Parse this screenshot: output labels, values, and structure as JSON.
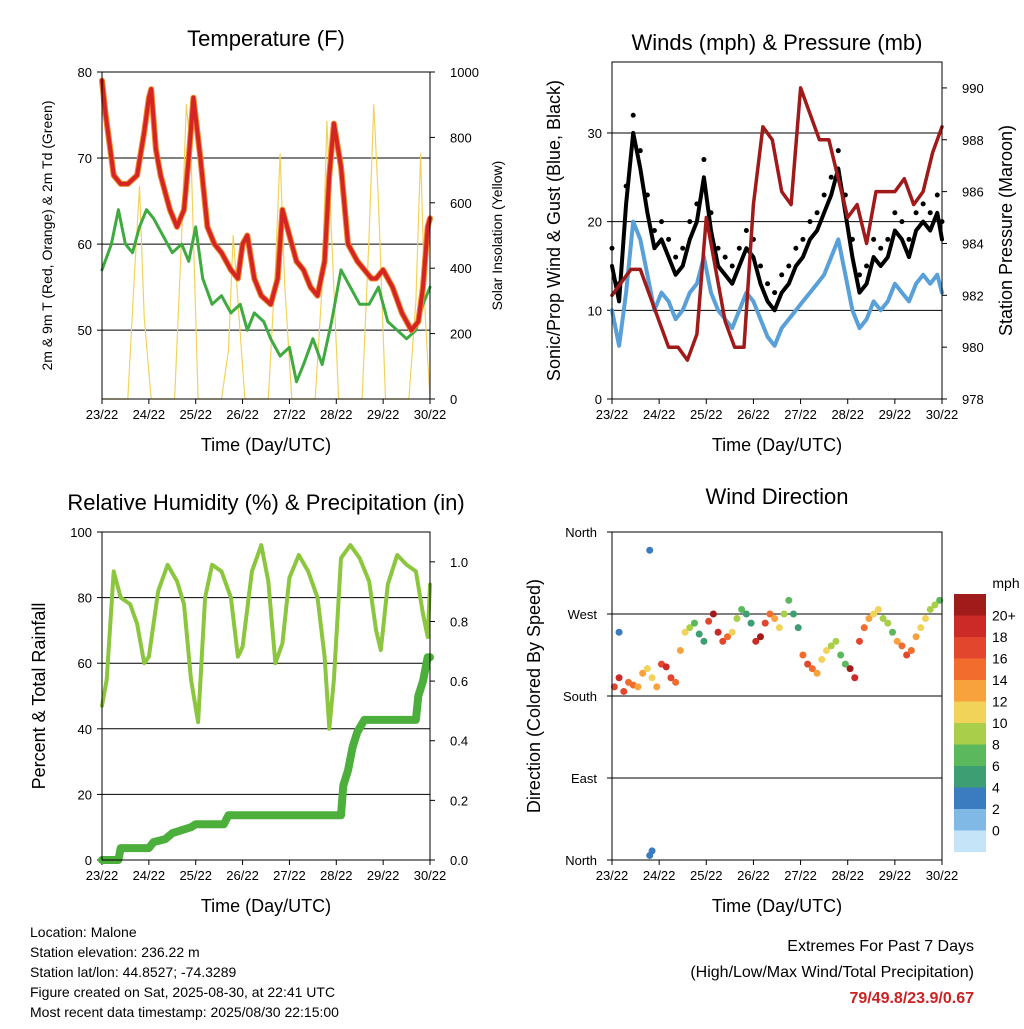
{
  "x_ticks": [
    "23/22",
    "24/22",
    "25/22",
    "26/22",
    "27/22",
    "28/22",
    "29/22",
    "30/22"
  ],
  "x_label": "Time (Day/UTC)",
  "chart_data": [
    {
      "type": "line",
      "title": "Temperature (F)",
      "xlabel": "Time (Day/UTC)",
      "ylabel": "2m & 9m T (Red, Orange) & 2m Td (Green)",
      "ylabel_right": "Solar Insolation (Yellow)",
      "ylim": [
        42,
        80
      ],
      "ylim_right": [
        0,
        1000
      ],
      "yticks": [
        50,
        60,
        70,
        80
      ],
      "yticks_right": [
        0,
        200,
        400,
        600,
        800,
        1000
      ],
      "grid": true,
      "colors": {
        "t2m": "#d42424",
        "t9m": "#f08a2a",
        "td": "#3faa3f",
        "solar": "#f2d35a"
      },
      "series": [
        {
          "key": "t2m",
          "axis": "left",
          "x": [
            0,
            0.08,
            0.25,
            0.4,
            0.55,
            0.75,
            0.9,
            1.0,
            1.05,
            1.15,
            1.25,
            1.45,
            1.6,
            1.75,
            1.85,
            1.95,
            2.1,
            2.25,
            2.4,
            2.55,
            2.75,
            2.9,
            3.0,
            3.1,
            3.25,
            3.4,
            3.6,
            3.75,
            3.85,
            4.0,
            4.15,
            4.3,
            4.45,
            4.6,
            4.75,
            4.85,
            4.95,
            5.1,
            5.25,
            5.45,
            5.6,
            5.75,
            5.85,
            6.0,
            6.2,
            6.4,
            6.6,
            6.75,
            6.85,
            6.95,
            7.0
          ],
          "y": [
            79,
            75,
            68,
            67,
            67,
            68,
            73,
            77,
            78,
            71,
            68,
            64,
            62,
            64,
            70,
            77,
            70,
            62,
            60,
            59,
            57,
            56,
            60,
            61,
            56,
            54,
            53,
            56,
            64,
            61,
            58,
            57,
            55,
            54,
            58,
            68,
            74,
            69,
            60,
            58,
            57,
            56,
            56,
            57,
            55,
            52,
            50,
            51,
            55,
            62,
            63
          ]
        },
        {
          "key": "td",
          "axis": "left",
          "x": [
            0,
            0.2,
            0.35,
            0.5,
            0.65,
            0.8,
            0.95,
            1.1,
            1.3,
            1.5,
            1.7,
            1.85,
            2.0,
            2.15,
            2.35,
            2.55,
            2.75,
            2.95,
            3.1,
            3.25,
            3.45,
            3.6,
            3.8,
            4.0,
            4.15,
            4.3,
            4.5,
            4.7,
            4.9,
            5.1,
            5.3,
            5.5,
            5.7,
            5.9,
            6.1,
            6.3,
            6.5,
            6.7,
            6.85,
            7.0
          ],
          "y": [
            57,
            60,
            64,
            60,
            59,
            62,
            64,
            63,
            61,
            59,
            60,
            58,
            62,
            56,
            53,
            54,
            52,
            53,
            50,
            52,
            51,
            49,
            47,
            48,
            44,
            46,
            49,
            46,
            51,
            57,
            55,
            53,
            53,
            55,
            51,
            50,
            49,
            50,
            53,
            55
          ]
        },
        {
          "key": "solar",
          "axis": "right",
          "x": [
            0,
            0.55,
            0.7,
            0.8,
            0.9,
            1.05,
            1.55,
            1.7,
            1.8,
            1.9,
            2.05,
            2.55,
            2.7,
            2.8,
            2.9,
            3.05,
            3.55,
            3.7,
            3.8,
            3.9,
            4.05,
            4.55,
            4.7,
            4.8,
            4.9,
            5.05,
            5.55,
            5.7,
            5.8,
            5.9,
            6.05,
            6.55,
            6.7,
            6.8,
            6.9,
            7.0
          ],
          "y": [
            0,
            0,
            400,
            650,
            250,
            0,
            0,
            500,
            900,
            750,
            0,
            0,
            150,
            500,
            300,
            0,
            0,
            400,
            750,
            350,
            0,
            0,
            350,
            850,
            500,
            0,
            0,
            500,
            900,
            600,
            0,
            0,
            300,
            750,
            250,
            0
          ]
        }
      ]
    },
    {
      "type": "line",
      "title": "Winds (mph) & Pressure (mb)",
      "xlabel": "Time (Day/UTC)",
      "ylabel": "Sonic/Prop Wind & Gust (Blue, Black)",
      "ylabel_right": "Station Pressure (Maroon)",
      "ylim": [
        0,
        38
      ],
      "ylim_right": [
        978,
        991
      ],
      "yticks": [
        0,
        10,
        20,
        30
      ],
      "yticks_right": [
        978,
        980,
        982,
        984,
        986,
        988,
        990
      ],
      "grid": true,
      "colors": {
        "wind": "#5aa0d8",
        "gust": "#000000",
        "pressure": "#a11a1a"
      },
      "series": [
        {
          "key": "wind",
          "axis": "left",
          "x": [
            0,
            0.15,
            0.3,
            0.45,
            0.6,
            0.75,
            0.9,
            1.05,
            1.2,
            1.35,
            1.5,
            1.65,
            1.8,
            1.95,
            2.1,
            2.25,
            2.4,
            2.55,
            2.7,
            2.85,
            3.0,
            3.15,
            3.3,
            3.45,
            3.6,
            3.75,
            3.9,
            4.05,
            4.2,
            4.35,
            4.5,
            4.65,
            4.8,
            4.95,
            5.1,
            5.25,
            5.4,
            5.55,
            5.7,
            5.85,
            6.0,
            6.15,
            6.3,
            6.45,
            6.6,
            6.75,
            6.9,
            7.0
          ],
          "y": [
            10,
            6,
            12,
            20,
            18,
            14,
            10,
            12,
            11,
            9,
            10,
            12,
            13,
            16,
            12,
            10,
            9,
            8,
            10,
            12,
            11,
            9,
            7,
            6,
            8,
            9,
            10,
            11,
            12,
            13,
            14,
            16,
            18,
            14,
            10,
            8,
            9,
            11,
            10,
            11,
            13,
            12,
            11,
            13,
            14,
            13,
            14,
            12
          ]
        },
        {
          "key": "gust",
          "axis": "left",
          "x": [
            0,
            0.15,
            0.3,
            0.45,
            0.6,
            0.75,
            0.9,
            1.05,
            1.2,
            1.35,
            1.5,
            1.65,
            1.8,
            1.95,
            2.1,
            2.25,
            2.4,
            2.55,
            2.7,
            2.85,
            3.0,
            3.15,
            3.3,
            3.45,
            3.6,
            3.75,
            3.9,
            4.05,
            4.2,
            4.35,
            4.5,
            4.65,
            4.8,
            4.95,
            5.1,
            5.25,
            5.4,
            5.55,
            5.7,
            5.85,
            6.0,
            6.15,
            6.3,
            6.45,
            6.6,
            6.75,
            6.9,
            7.0
          ],
          "y": [
            15,
            11,
            22,
            30,
            26,
            21,
            17,
            18,
            16,
            14,
            15,
            18,
            20,
            25,
            19,
            15,
            14,
            13,
            15,
            17,
            16,
            13,
            11,
            10,
            12,
            13,
            15,
            16,
            18,
            19,
            21,
            23,
            26,
            21,
            16,
            12,
            13,
            16,
            15,
            16,
            19,
            18,
            16,
            19,
            20,
            19,
            21,
            18
          ]
        },
        {
          "key": "pressure",
          "axis": "right",
          "x": [
            0,
            0.2,
            0.4,
            0.6,
            0.8,
            1.0,
            1.2,
            1.4,
            1.6,
            1.8,
            2.0,
            2.2,
            2.4,
            2.6,
            2.8,
            3.0,
            3.2,
            3.4,
            3.6,
            3.8,
            4.0,
            4.2,
            4.4,
            4.6,
            4.8,
            5.0,
            5.2,
            5.4,
            5.6,
            5.8,
            6.0,
            6.2,
            6.4,
            6.6,
            6.8,
            7.0
          ],
          "y": [
            982,
            982.5,
            983,
            983,
            982,
            981,
            980,
            980,
            979.5,
            980.5,
            985,
            983,
            981,
            980,
            980,
            985.5,
            988.5,
            988,
            986,
            985.5,
            990,
            989,
            988,
            988,
            986.5,
            985,
            985.5,
            984,
            986,
            986,
            986,
            986.5,
            985.5,
            986,
            987.5,
            988.5
          ]
        }
      ]
    },
    {
      "type": "line",
      "title": "Relative Humidity (%) & Precipitation (in)",
      "xlabel": "Time (Day/UTC)",
      "ylabel": "Percent & Total Rainfall",
      "ylim": [
        0,
        100
      ],
      "ylim_right": [
        0,
        1.1
      ],
      "yticks": [
        0,
        20,
        40,
        60,
        80,
        100
      ],
      "yticks_right": [
        0.0,
        0.2,
        0.4,
        0.6,
        0.8,
        1.0
      ],
      "grid": true,
      "colors": {
        "rh": "#8cc63f",
        "precip": "#4caf3c"
      },
      "series": [
        {
          "key": "rh",
          "axis": "left",
          "x": [
            0,
            0.1,
            0.25,
            0.4,
            0.6,
            0.75,
            0.9,
            1.0,
            1.2,
            1.4,
            1.6,
            1.75,
            1.9,
            2.05,
            2.2,
            2.35,
            2.55,
            2.75,
            2.9,
            3.0,
            3.2,
            3.4,
            3.55,
            3.7,
            3.85,
            4.0,
            4.2,
            4.4,
            4.6,
            4.75,
            4.85,
            4.95,
            5.1,
            5.3,
            5.5,
            5.7,
            5.85,
            5.95,
            6.1,
            6.3,
            6.5,
            6.7,
            6.85,
            6.95,
            7.0
          ],
          "y": [
            47,
            55,
            88,
            80,
            78,
            72,
            60,
            62,
            82,
            90,
            85,
            78,
            55,
            42,
            80,
            90,
            88,
            80,
            62,
            65,
            88,
            96,
            85,
            60,
            66,
            86,
            93,
            88,
            80,
            62,
            40,
            55,
            92,
            96,
            92,
            85,
            70,
            64,
            84,
            93,
            90,
            88,
            75,
            68,
            84
          ]
        },
        {
          "key": "precip",
          "axis": "right",
          "x": [
            0,
            0.35,
            0.4,
            1.0,
            1.1,
            1.35,
            1.5,
            1.9,
            2.0,
            2.6,
            2.7,
            5.1,
            5.15,
            5.25,
            5.35,
            5.45,
            5.6,
            6.7,
            6.75,
            6.85,
            6.95,
            7.0
          ],
          "y": [
            0,
            0,
            0.04,
            0.04,
            0.06,
            0.07,
            0.09,
            0.11,
            0.12,
            0.12,
            0.15,
            0.15,
            0.25,
            0.3,
            0.38,
            0.43,
            0.47,
            0.47,
            0.55,
            0.6,
            0.68,
            0.68
          ]
        }
      ]
    },
    {
      "type": "scatter",
      "title": "Wind Direction",
      "xlabel": "Time (Day/UTC)",
      "ylabel": "Direction (Colored By Speed)",
      "ylim": [
        0,
        360
      ],
      "ytick_labels": [
        "North",
        "East",
        "South",
        "West",
        "North"
      ],
      "legend_title": "mph",
      "legend_labels": [
        "20+",
        "18",
        "16",
        "14",
        "12",
        "10",
        "8",
        "6",
        "4",
        "2",
        "0"
      ],
      "legend_colors": [
        "#a21b1b",
        "#cc2a26",
        "#e2472e",
        "#f26c2e",
        "#f7a23c",
        "#f2d35a",
        "#a9cf4a",
        "#5cb85c",
        "#3d9e73",
        "#3b7bc0",
        "#80b8e6",
        "#c6e4f7"
      ],
      "grid": true,
      "points": {
        "x": [
          0.05,
          0.15,
          0.25,
          0.35,
          0.45,
          0.55,
          0.65,
          0.75,
          0.85,
          0.95,
          1.05,
          1.15,
          1.25,
          1.35,
          1.45,
          1.55,
          1.65,
          1.75,
          1.85,
          1.95,
          2.05,
          2.15,
          2.25,
          2.35,
          2.45,
          2.55,
          2.65,
          2.75,
          2.85,
          2.95,
          3.05,
          3.15,
          3.25,
          3.35,
          3.45,
          3.55,
          3.65,
          3.75,
          3.85,
          3.95,
          4.05,
          4.15,
          4.25,
          4.35,
          4.45,
          4.55,
          4.65,
          4.75,
          4.85,
          4.95,
          5.05,
          5.15,
          5.25,
          5.35,
          5.45,
          5.55,
          5.65,
          5.75,
          5.85,
          5.95,
          6.05,
          6.15,
          6.25,
          6.35,
          6.45,
          6.55,
          6.65,
          6.75,
          6.85,
          6.95,
          0.15,
          0.8,
          0.8,
          0.85
        ],
        "y": [
          190,
          200,
          185,
          195,
          192,
          190,
          205,
          210,
          200,
          190,
          215,
          212,
          200,
          195,
          230,
          250,
          255,
          260,
          248,
          240,
          262,
          270,
          250,
          240,
          245,
          250,
          265,
          275,
          270,
          260,
          240,
          245,
          260,
          270,
          265,
          255,
          270,
          285,
          270,
          255,
          225,
          215,
          210,
          205,
          220,
          230,
          235,
          240,
          225,
          215,
          210,
          200,
          240,
          255,
          265,
          270,
          275,
          265,
          260,
          250,
          240,
          235,
          225,
          230,
          245,
          255,
          265,
          275,
          280,
          285,
          250,
          340,
          5,
          10
        ],
        "speed": [
          16,
          18,
          17,
          15,
          14,
          13,
          12,
          11,
          10,
          12,
          16,
          18,
          17,
          15,
          12,
          10,
          8,
          6,
          5,
          4,
          17,
          20,
          19,
          16,
          14,
          10,
          8,
          6,
          5,
          4,
          18,
          20,
          17,
          15,
          12,
          10,
          8,
          6,
          5,
          4,
          14,
          16,
          15,
          13,
          11,
          10,
          9,
          8,
          7,
          6,
          20,
          19,
          17,
          15,
          13,
          11,
          10,
          9,
          8,
          7,
          12,
          14,
          16,
          15,
          13,
          11,
          10,
          9,
          8,
          7,
          3,
          2,
          3,
          2
        ]
      }
    }
  ],
  "info": {
    "location": "Location: Malone",
    "elevation": "Station elevation: 236.22 m",
    "latlon": "Station lat/lon: 44.8527; -74.3289",
    "created": "Figure created on Sat, 2025-08-30, at 22:41 UTC",
    "recent": "Most recent data timestamp: 2025/08/30 22:15:00"
  },
  "extremes": {
    "line1": "Extremes For Past 7 Days",
    "line2": "(High/Low/Max Wind/Total Precipitation)",
    "values": "79/49.8/23.9/0.67"
  }
}
